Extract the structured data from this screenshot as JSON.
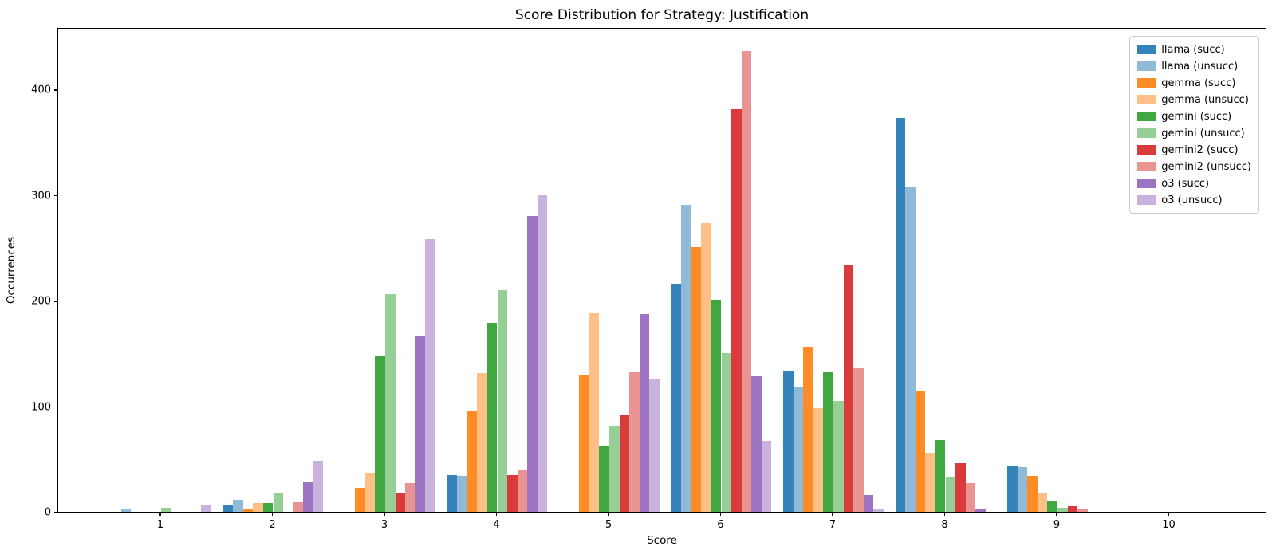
{
  "chart_data": {
    "type": "bar",
    "title": "Score Distribution for Strategy: Justification",
    "xlabel": "Score",
    "ylabel": "Occurrences",
    "categories": [
      "1",
      "2",
      "3",
      "4",
      "5",
      "6",
      "7",
      "8",
      "9",
      "10"
    ],
    "yticks": [
      0,
      100,
      200,
      300,
      400
    ],
    "ylim": [
      0,
      459
    ],
    "grid": false,
    "legend_position": "upper right",
    "series": [
      {
        "name": "llama (succ)",
        "color": "#3483ba",
        "values": [
          0,
          6,
          0,
          35,
          0,
          216,
          133,
          373,
          43,
          0
        ]
      },
      {
        "name": "llama (unsucc)",
        "color": "#8fbbd9",
        "values": [
          3,
          11,
          0,
          34,
          0,
          291,
          118,
          307,
          42,
          0
        ]
      },
      {
        "name": "gemma (succ)",
        "color": "#ff8b24",
        "values": [
          0,
          3,
          23,
          95,
          129,
          251,
          156,
          115,
          34,
          0
        ]
      },
      {
        "name": "gemma (unsucc)",
        "color": "#ffbf86",
        "values": [
          0,
          8,
          37,
          131,
          188,
          273,
          98,
          56,
          17,
          0
        ]
      },
      {
        "name": "gemini (succ)",
        "color": "#40a840",
        "values": [
          0,
          8,
          147,
          179,
          62,
          201,
          132,
          68,
          10,
          0
        ]
      },
      {
        "name": "gemini (unsucc)",
        "color": "#95cf95",
        "values": [
          4,
          17,
          206,
          210,
          81,
          150,
          105,
          33,
          4,
          0
        ]
      },
      {
        "name": "gemini2 (succ)",
        "color": "#d93b3c",
        "values": [
          0,
          0,
          18,
          35,
          91,
          381,
          233,
          46,
          5,
          0
        ]
      },
      {
        "name": "gemini2 (unsucc)",
        "color": "#ea9393",
        "values": [
          0,
          9,
          27,
          40,
          132,
          436,
          136,
          27,
          2,
          0
        ]
      },
      {
        "name": "o3 (succ)",
        "color": "#9d74c2",
        "values": [
          0,
          28,
          166,
          280,
          187,
          128,
          16,
          2,
          0,
          0
        ]
      },
      {
        "name": "o3 (unsucc)",
        "color": "#c9b3de",
        "values": [
          6,
          48,
          258,
          300,
          125,
          67,
          3,
          0,
          0,
          0
        ]
      }
    ]
  }
}
